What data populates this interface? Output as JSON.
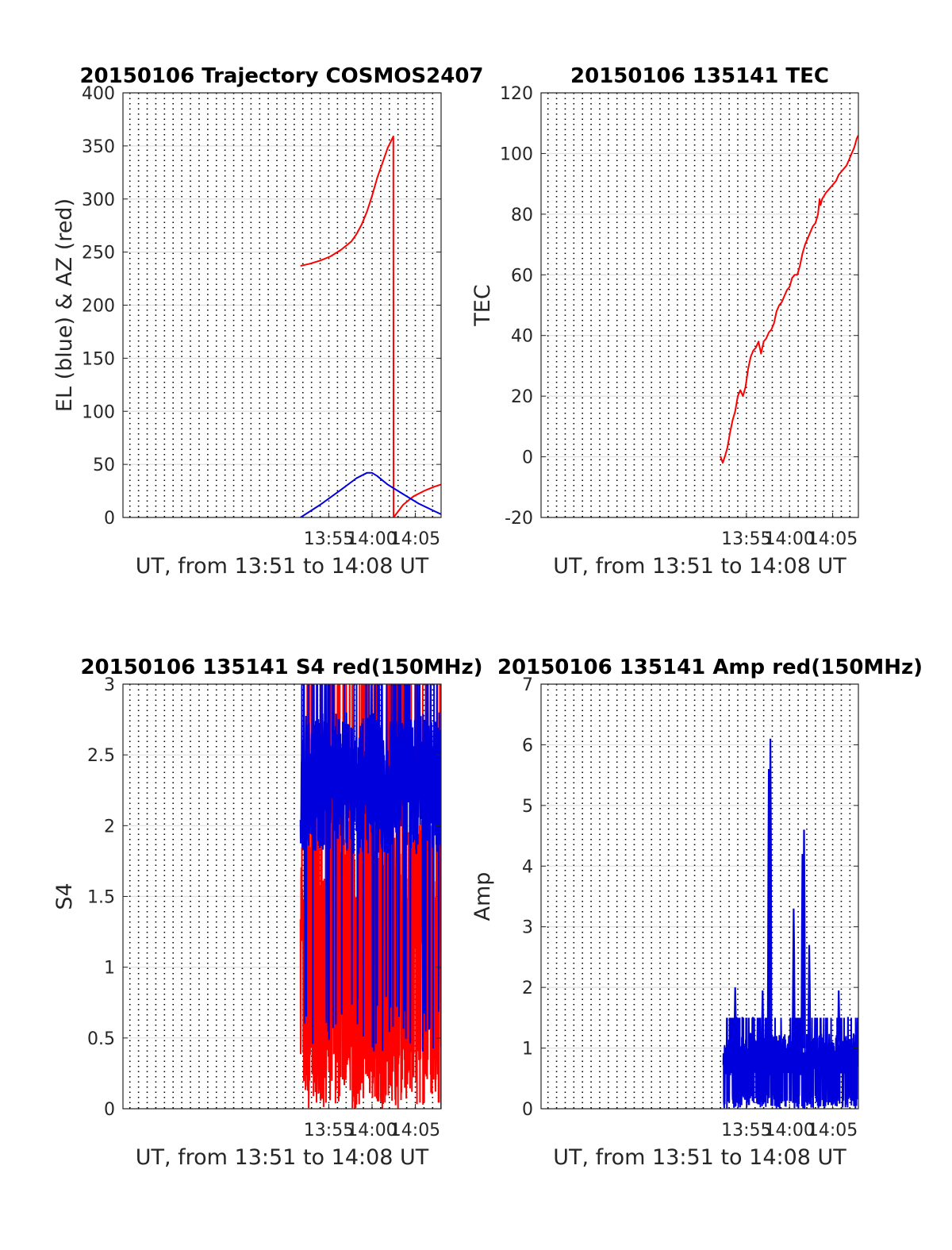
{
  "figure": {
    "background": "#ffffff",
    "grid_color": "#e0e0e0",
    "vline_color": "#000000",
    "colors": {
      "red": "#ff0000",
      "blue": "#0000dd"
    }
  },
  "chart_data": [
    {
      "id": "trajectory",
      "type": "line",
      "title": "20150106 Trajectory COSMOS2407",
      "xlabel": "UT, from 13:51 to 14:08 UT",
      "ylabel": "EL (blue) & AZ (red)",
      "xlim": [
        13.52,
        14.133
      ],
      "ylim": [
        0,
        400
      ],
      "yticks": [
        0,
        50,
        100,
        150,
        200,
        250,
        300,
        350,
        400
      ],
      "ytick_labels": [
        "0",
        "50",
        "100",
        "150",
        "200",
        "250",
        "300",
        "350",
        "400"
      ],
      "xticks": [
        13.9167,
        14.0,
        14.0833
      ],
      "xtick_labels": [
        "13:55",
        "14:00",
        "14:05"
      ],
      "grid": true,
      "dotted_vlines": true,
      "series": [
        {
          "color": "#ff0000",
          "x": [
            13.862,
            13.88,
            13.9,
            13.92,
            13.94,
            13.96,
            13.97,
            13.98,
            13.99,
            14.0,
            14.01,
            14.02,
            14.03,
            14.041,
            14.0415,
            14.06,
            14.08,
            14.1,
            14.12,
            14.133
          ],
          "y": [
            237,
            239,
            242,
            246,
            252,
            260,
            267,
            276,
            288,
            303,
            320,
            334,
            348,
            359,
            0,
            12,
            20,
            25,
            29,
            31
          ]
        },
        {
          "color": "#0000dd",
          "x": [
            13.862,
            13.9,
            13.94,
            13.97,
            13.99,
            14.0,
            14.01,
            14.03,
            14.06,
            14.09,
            14.12,
            14.133
          ],
          "y": [
            0,
            12,
            26,
            37,
            42,
            42,
            39,
            31,
            22,
            13,
            6,
            3
          ]
        }
      ]
    },
    {
      "id": "tec",
      "type": "line",
      "title": "20150106 135141 TEC",
      "xlabel": "UT, from 13:51 to 14:08 UT",
      "ylabel": "TEC",
      "xlim": [
        13.52,
        14.133
      ],
      "ylim": [
        -20,
        120
      ],
      "yticks": [
        -20,
        0,
        20,
        40,
        60,
        80,
        100,
        120
      ],
      "ytick_labels": [
        "-20",
        "0",
        "20",
        "40",
        "60",
        "80",
        "100",
        "120"
      ],
      "xticks": [
        13.9167,
        14.0,
        14.0833
      ],
      "xtick_labels": [
        "13:55",
        "14:00",
        "14:05"
      ],
      "grid": true,
      "dotted_vlines": true,
      "series": [
        {
          "color": "#ff0000",
          "x": [
            13.865,
            13.867,
            13.869,
            13.871,
            13.875,
            13.88,
            13.885,
            13.89,
            13.895,
            13.9,
            13.905,
            13.91,
            13.915,
            13.92,
            13.925,
            13.93,
            13.935,
            13.94,
            13.945,
            13.95,
            13.955,
            13.96,
            13.965,
            13.97,
            13.975,
            13.98,
            13.985,
            13.99,
            13.995,
            14.0,
            14.005,
            14.01,
            14.015,
            14.02,
            14.025,
            14.03,
            14.035,
            14.04,
            14.045,
            14.05,
            14.055,
            14.058,
            14.06,
            14.063,
            14.07,
            14.075,
            14.08,
            14.085,
            14.09,
            14.095,
            14.1,
            14.105,
            14.11,
            14.115,
            14.12,
            14.125,
            14.13,
            14.133
          ],
          "y": [
            0,
            0,
            -1,
            -2,
            0,
            3,
            8,
            12,
            15,
            20,
            22,
            20,
            23,
            29,
            33,
            35,
            36,
            38,
            34,
            38,
            39,
            41,
            42,
            44,
            48,
            50,
            51,
            53,
            55,
            56,
            59,
            60,
            60,
            63,
            67,
            70,
            72,
            74,
            76,
            77,
            80,
            85,
            83,
            85,
            87,
            88,
            89,
            90,
            91,
            93,
            94,
            95,
            96,
            98,
            100,
            102,
            105,
            106
          ]
        }
      ]
    },
    {
      "id": "s4",
      "type": "line",
      "title": "20150106 135141 S4 red(150MHz)",
      "xlabel": "UT, from 13:51 to 14:08 UT",
      "ylabel": "S4",
      "xlim": [
        13.52,
        14.133
      ],
      "ylim": [
        0,
        3
      ],
      "yticks": [
        0,
        0.5,
        1,
        1.5,
        2,
        2.5,
        3
      ],
      "ytick_labels": [
        "0",
        "0.5",
        "1",
        "1.5",
        "2",
        "2.5",
        "3"
      ],
      "xticks": [
        13.9167,
        14.0,
        14.0833
      ],
      "xtick_labels": [
        "13:55",
        "14:00",
        "14:05"
      ],
      "grid": true,
      "dotted_vlines": true,
      "noise": [
        {
          "color": "#ff0000",
          "x_range": [
            13.862,
            14.133
          ],
          "low": 0.0,
          "high": 3.0,
          "base": 1.6,
          "spread": 0.5,
          "drop_prob": 0.35,
          "seed": 7
        },
        {
          "color": "#0000dd",
          "x_range": [
            13.862,
            14.133
          ],
          "low": 0.4,
          "high": 3.0,
          "base": 2.3,
          "spread": 0.5,
          "drop_prob": 0.05,
          "seed": 11
        }
      ]
    },
    {
      "id": "amp",
      "type": "line",
      "title": "20150106 135141 Amp red(150MHz)",
      "xlabel": "UT, from 13:51 to 14:08 UT",
      "ylabel": "Amp",
      "xlim": [
        13.52,
        14.133
      ],
      "ylim": [
        0,
        7
      ],
      "yticks": [
        0,
        1,
        2,
        3,
        4,
        5,
        6,
        7
      ],
      "ytick_labels": [
        "0",
        "1",
        "2",
        "3",
        "4",
        "5",
        "6",
        "7"
      ],
      "xticks": [
        13.9167,
        14.0,
        14.0833
      ],
      "xtick_labels": [
        "13:55",
        "14:00",
        "14:05"
      ],
      "grid": true,
      "dotted_vlines": true,
      "peaks": [
        {
          "x": 13.963,
          "y": 6.1
        },
        {
          "x": 13.96,
          "y": 5.6
        },
        {
          "x": 14.028,
          "y": 4.6
        },
        {
          "x": 14.025,
          "y": 4.2
        },
        {
          "x": 14.008,
          "y": 3.3
        },
        {
          "x": 14.038,
          "y": 2.7
        },
        {
          "x": 13.895,
          "y": 2.0
        },
        {
          "x": 13.948,
          "y": 1.95
        },
        {
          "x": 14.095,
          "y": 1.95
        }
      ],
      "noise": [
        {
          "color": "#0000dd",
          "x_range": [
            13.872,
            14.133
          ],
          "low": 0.0,
          "high": 1.5,
          "base": 0.9,
          "spread": 0.35,
          "drop_prob": 0.3,
          "seed": 23
        }
      ]
    }
  ]
}
